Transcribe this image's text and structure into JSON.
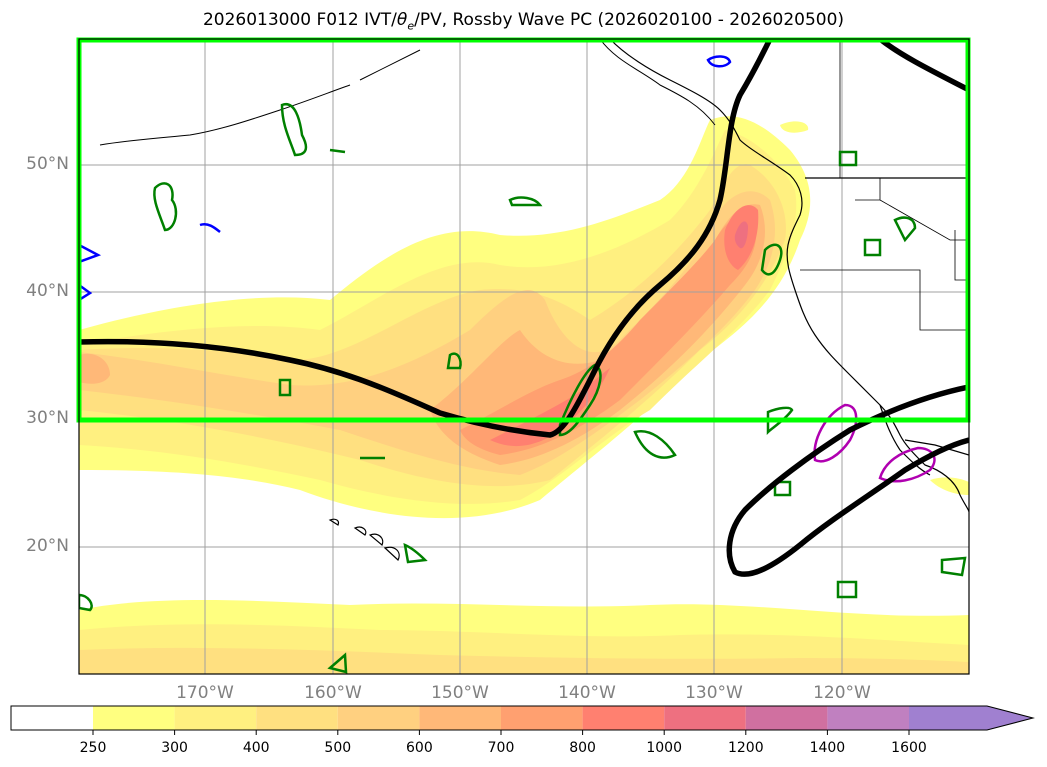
{
  "title": {
    "prefix": "2026013000 F012 IVT/",
    "theta": "θ",
    "theta_sub": "e",
    "suffix": "/PV, Rossby Wave PC (2026020100 - 2026020500)"
  },
  "map": {
    "lat_labels": [
      "50°N",
      "40°N",
      "30°N",
      "20°N"
    ],
    "lon_labels": [
      "170°W",
      "160°W",
      "150°W",
      "140°W",
      "130°W",
      "120°W"
    ],
    "highlight_box_color": "#00ff00",
    "contour_colors": {
      "pv": "#000000",
      "positive": "#008000",
      "negative": "#0000ff",
      "magenta": "#b000b0"
    }
  },
  "colorbar": {
    "ticks": [
      "250",
      "300",
      "400",
      "500",
      "600",
      "700",
      "800",
      "1000",
      "1200",
      "1400",
      "1600"
    ],
    "colors": [
      "#ffffff",
      "#ffff80",
      "#fff080",
      "#ffe080",
      "#ffd080",
      "#ffb878",
      "#ffa070",
      "#ff8070",
      "#ee7080",
      "#d070a0",
      "#c080c0",
      "#a080d0"
    ]
  }
}
